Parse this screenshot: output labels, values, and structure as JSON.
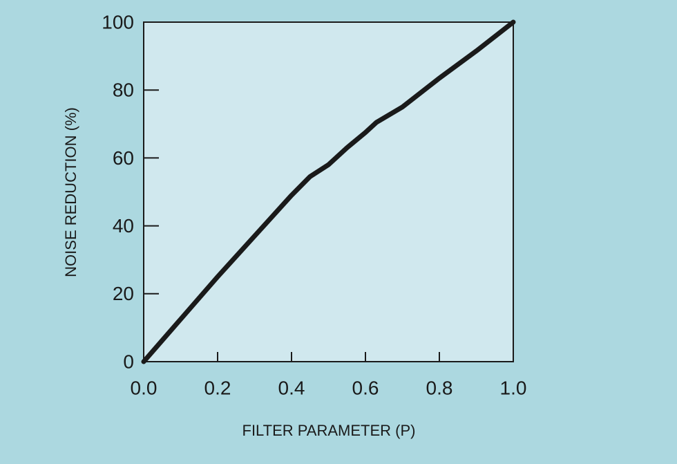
{
  "chart_data": {
    "type": "line",
    "xlabel": "FILTER PARAMETER (P)",
    "ylabel": "NOISE REDUCTION (%)",
    "x": [
      0,
      0.1,
      0.2,
      0.3,
      0.4,
      0.45,
      0.5,
      0.55,
      0.6,
      0.63,
      0.7,
      0.8,
      0.9,
      1.0
    ],
    "series": [
      {
        "color": "#1a1a1a",
        "values": [
          0,
          12.5,
          25,
          37,
          49,
          54.5,
          58,
          63,
          67.5,
          70.5,
          75,
          83.5,
          91.5,
          100
        ]
      }
    ],
    "xlim": [
      0,
      1
    ],
    "ylim": [
      0,
      100
    ],
    "xticks": [
      {
        "value": 0,
        "label": "0.0"
      },
      0.2,
      0.4,
      0.6,
      0.8,
      {
        "value": 1,
        "label": "1.0"
      }
    ],
    "yticks": [
      0,
      20,
      40,
      60,
      80,
      100
    ],
    "grid": false
  }
}
